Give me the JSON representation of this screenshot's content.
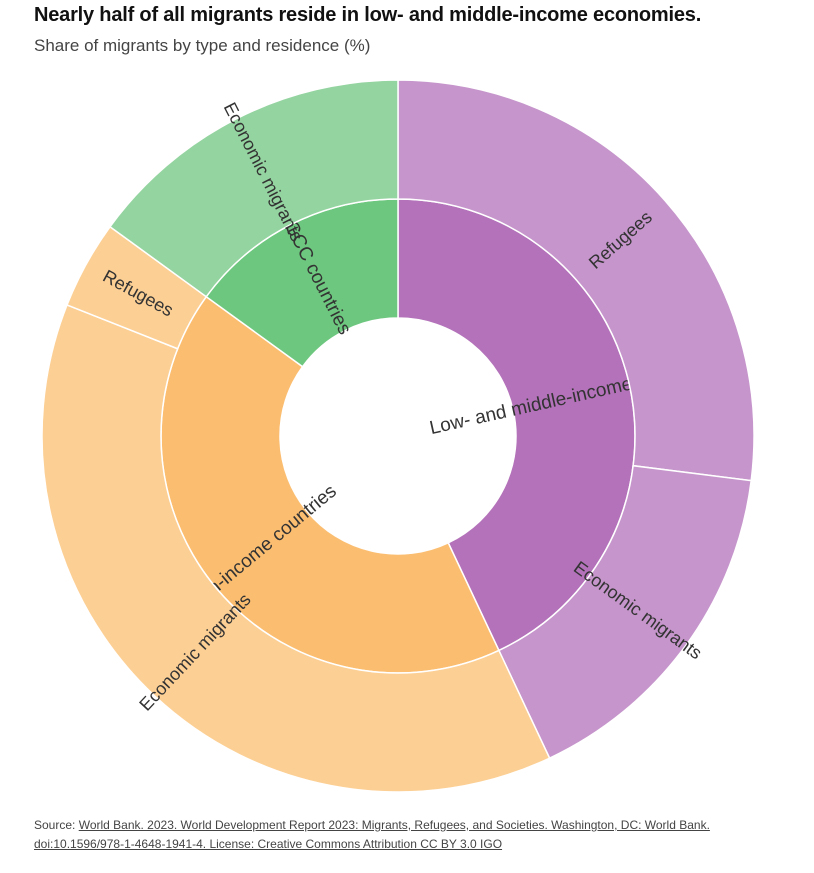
{
  "header": {
    "title": "Nearly half of all migrants reside in low- and middle-income economies.",
    "subtitle": "Share of migrants by type and residence (%)"
  },
  "chart_data": {
    "type": "sunburst",
    "rings": [
      {
        "level": "residence",
        "segments": [
          {
            "label": "Low- and middle-income countries",
            "value": 43,
            "color": "#b372b9"
          },
          {
            "label": "High-income countries",
            "value": 42,
            "color": "#fbbe71"
          },
          {
            "label": "GCC countries",
            "value": 15,
            "color": "#6ec77f"
          }
        ]
      },
      {
        "level": "type",
        "segments": [
          {
            "parent": "Low- and middle-income countries",
            "label": "Refugees",
            "value": 27,
            "color": "#c595cb"
          },
          {
            "parent": "Low- and middle-income countries",
            "label": "Economic migrants",
            "value": 16,
            "color": "#c595cb"
          },
          {
            "parent": "High-income countries",
            "label": "Economic migrants",
            "value": 38,
            "color": "#fccf94"
          },
          {
            "parent": "High-income countries",
            "label": "Refugees",
            "value": 4,
            "color": "#fccf94"
          },
          {
            "parent": "GCC countries",
            "label": "Economic migrants",
            "value": 15,
            "color": "#94d4a0"
          }
        ]
      }
    ]
  },
  "source": {
    "prefix": "Source: ",
    "text": "World Bank. 2023. World Development Report 2023: Migrants, Refugees, and Societies. Washington, DC: World Bank. doi:10.1596/978-1-4648-1941-4. License: Creative Commons Attribution CC BY 3.0 IGO"
  }
}
